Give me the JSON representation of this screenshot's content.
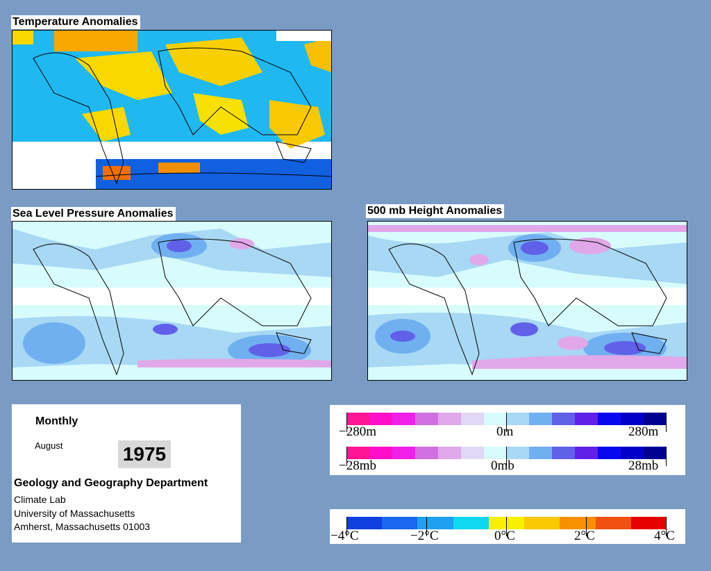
{
  "panels": {
    "temperature": {
      "title": "Temperature Anomalies"
    },
    "pressure": {
      "title": "Sea Level Pressure Anomalies"
    },
    "height": {
      "title": "500 mb Height Anomalies"
    }
  },
  "info": {
    "frequency": "Monthly",
    "month": "August",
    "year": "1975",
    "department": "Geology and Geography Department",
    "lab": "Climate Lab",
    "university": "University of Massachusetts",
    "address": "Amherst, Massachusetts 01003"
  },
  "legend_height": {
    "ticks": [
      "−280m",
      "0m",
      "280m"
    ]
  },
  "legend_pressure": {
    "ticks": [
      "−28mb",
      "0mb",
      "28mb"
    ]
  },
  "legend_temp": {
    "ticks": [
      "−4°C",
      "−2°C",
      "0°C",
      "2°C",
      "4°C"
    ]
  },
  "colors": {
    "anomaly_scale": [
      "#ff1493",
      "#ff10c8",
      "#f020e8",
      "#d070e0",
      "#e0a8e8",
      "#e0d8f4",
      "#d8fcfc",
      "#a8d8f4",
      "#70b0f0",
      "#6060e8",
      "#6020e8",
      "#0808f0",
      "#0000c8",
      "#000090"
    ],
    "temp_scale": [
      "#1040e0",
      "#1868f0",
      "#20a0f0",
      "#10d8f0",
      "#f8f000",
      "#f8c800",
      "#f89000",
      "#f05010",
      "#e80000"
    ],
    "background": "#7a9cc4"
  }
}
